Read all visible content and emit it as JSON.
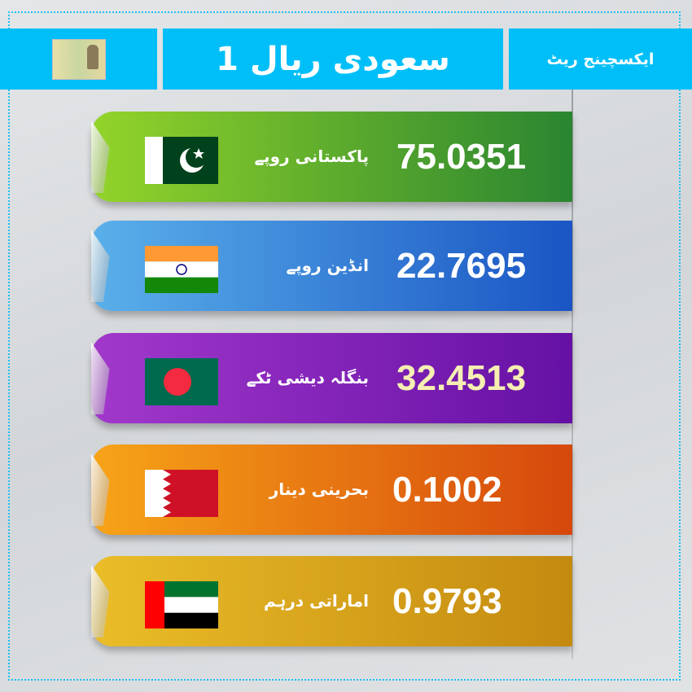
{
  "header": {
    "note_icon": "saudi-riyal-banknote",
    "title": "1 سعودی ریال",
    "label": "ایکسچینج ریٹ",
    "accent": "#00bff8"
  },
  "rates": [
    {
      "name": "پاکستانی روپے",
      "value": "75.0351",
      "flag": "pakistan",
      "colors": [
        "#93d42a",
        "#2a8530"
      ],
      "value_color": "#ffffff"
    },
    {
      "name": "انڈین روپے",
      "value": "22.7695",
      "flag": "india",
      "colors": [
        "#5ab0ea",
        "#1a55c4"
      ],
      "value_color": "#ffffff"
    },
    {
      "name": "بنگلہ دیشی ٹکے",
      "value": "32.4513",
      "flag": "bangladesh",
      "colors": [
        "#a238cc",
        "#6510a4"
      ],
      "value_color": "#f6efb2"
    },
    {
      "name": "بحرینی دینار",
      "value": "0.1002",
      "flag": "bahrain",
      "colors": [
        "#f7a418",
        "#d6480c"
      ],
      "value_color": "#ffffff"
    },
    {
      "name": "اماراتی درہم",
      "value": "0.9793",
      "flag": "uae",
      "colors": [
        "#eabd28",
        "#c48a10"
      ],
      "value_color": "#ffffff"
    }
  ]
}
